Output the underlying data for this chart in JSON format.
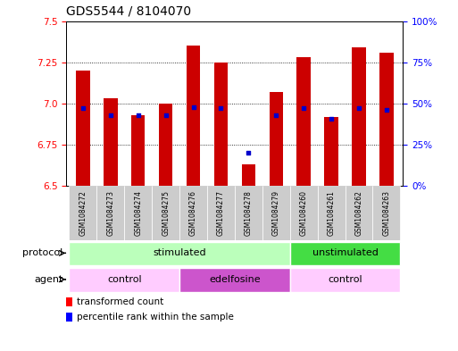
{
  "title": "GDS5544 / 8104070",
  "samples": [
    "GSM1084272",
    "GSM1084273",
    "GSM1084274",
    "GSM1084275",
    "GSM1084276",
    "GSM1084277",
    "GSM1084278",
    "GSM1084279",
    "GSM1084260",
    "GSM1084261",
    "GSM1084262",
    "GSM1084263"
  ],
  "bar_values": [
    7.2,
    7.03,
    6.93,
    7.0,
    7.35,
    7.25,
    6.63,
    7.07,
    7.28,
    6.92,
    7.34,
    7.31
  ],
  "blue_dot_values": [
    47,
    43,
    43,
    43,
    48,
    47,
    20,
    43,
    47,
    41,
    47,
    46
  ],
  "ylim_left": [
    6.5,
    7.5
  ],
  "ylim_right": [
    0,
    100
  ],
  "yticks_left": [
    6.5,
    6.75,
    7.0,
    7.25,
    7.5
  ],
  "yticks_right": [
    0,
    25,
    50,
    75,
    100
  ],
  "ytick_labels_right": [
    "0%",
    "25%",
    "50%",
    "75%",
    "100%"
  ],
  "bar_color": "#cc0000",
  "bar_base": 6.5,
  "blue_dot_color": "#0000cc",
  "protocol_groups": [
    {
      "label": "stimulated",
      "start": 0,
      "end": 7,
      "color": "#bbffbb"
    },
    {
      "label": "unstimulated",
      "start": 8,
      "end": 11,
      "color": "#44dd44"
    }
  ],
  "agent_groups": [
    {
      "label": "control",
      "start": 0,
      "end": 3,
      "color": "#ffccff"
    },
    {
      "label": "edelfosine",
      "start": 4,
      "end": 7,
      "color": "#cc55cc"
    },
    {
      "label": "control",
      "start": 8,
      "end": 11,
      "color": "#ffccff"
    }
  ],
  "legend_red_label": "transformed count",
  "legend_blue_label": "percentile rank within the sample",
  "title_fontsize": 10,
  "tick_fontsize": 7.5,
  "label_fontsize": 8,
  "background_color": "#ffffff",
  "xlim": [
    -0.6,
    11.6
  ]
}
